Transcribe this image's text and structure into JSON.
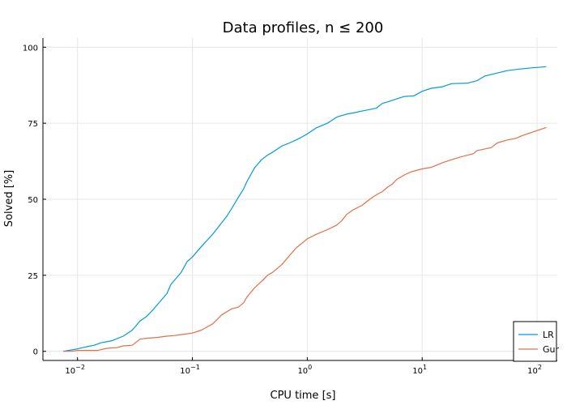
{
  "chart_data": {
    "type": "line",
    "title": "Data profiles, n ≤ 200",
    "xlabel": "CPU time [s]",
    "ylabel": "Solved [%]",
    "xscale": "log",
    "xlim": [
      0.005,
      150
    ],
    "ylim": [
      -3,
      103
    ],
    "grid": true,
    "legend_position": "bottom-right",
    "x_ticks": [
      {
        "value": 0.01,
        "base": "10",
        "exp": "−2"
      },
      {
        "value": 0.1,
        "base": "10",
        "exp": "−1"
      },
      {
        "value": 1,
        "base": "10",
        "exp": "0"
      },
      {
        "value": 10,
        "base": "10",
        "exp": "1"
      },
      {
        "value": 100,
        "base": "10",
        "exp": "2"
      }
    ],
    "y_ticks": [
      0,
      25,
      50,
      75,
      100
    ],
    "series": [
      {
        "name": "LR",
        "color": "#0099e0",
        "points": [
          [
            0.0075,
            0
          ],
          [
            0.009,
            0.5
          ],
          [
            0.01,
            0.8
          ],
          [
            0.012,
            1.5
          ],
          [
            0.014,
            2
          ],
          [
            0.016,
            2.8
          ],
          [
            0.02,
            3.5
          ],
          [
            0.025,
            5
          ],
          [
            0.03,
            7
          ],
          [
            0.035,
            10
          ],
          [
            0.04,
            11.5
          ],
          [
            0.045,
            13.5
          ],
          [
            0.05,
            15.5
          ],
          [
            0.06,
            19
          ],
          [
            0.065,
            22
          ],
          [
            0.08,
            26
          ],
          [
            0.09,
            29.5
          ],
          [
            0.1,
            31
          ],
          [
            0.12,
            34.5
          ],
          [
            0.15,
            38.5
          ],
          [
            0.2,
            44.5
          ],
          [
            0.22,
            47
          ],
          [
            0.25,
            50.5
          ],
          [
            0.28,
            53.5
          ],
          [
            0.3,
            56
          ],
          [
            0.35,
            60.5
          ],
          [
            0.4,
            63
          ],
          [
            0.45,
            64.5
          ],
          [
            0.5,
            65.5
          ],
          [
            0.55,
            66.5
          ],
          [
            0.6,
            67.5
          ],
          [
            0.7,
            68.5
          ],
          [
            0.8,
            69.5
          ],
          [
            0.9,
            70.5
          ],
          [
            1.0,
            71.5
          ],
          [
            1.2,
            73.5
          ],
          [
            1.5,
            75
          ],
          [
            1.8,
            77
          ],
          [
            2.2,
            78
          ],
          [
            2.6,
            78.5
          ],
          [
            3.0,
            79
          ],
          [
            3.5,
            79.5
          ],
          [
            4.0,
            80
          ],
          [
            4.5,
            81.5
          ],
          [
            5.0,
            82
          ],
          [
            6.0,
            83
          ],
          [
            7.0,
            83.8
          ],
          [
            8.5,
            84
          ],
          [
            10,
            85.5
          ],
          [
            12,
            86.5
          ],
          [
            15,
            87
          ],
          [
            18,
            88
          ],
          [
            25,
            88.2
          ],
          [
            30,
            89
          ],
          [
            35,
            90.5
          ],
          [
            45,
            91.5
          ],
          [
            55,
            92.3
          ],
          [
            70,
            92.8
          ],
          [
            90,
            93.2
          ],
          [
            120,
            93.6
          ]
        ]
      },
      {
        "name": "Gur",
        "color": "#e26f46",
        "points": [
          [
            0.0075,
            0
          ],
          [
            0.009,
            0
          ],
          [
            0.01,
            0.3
          ],
          [
            0.015,
            0.3
          ],
          [
            0.018,
            1
          ],
          [
            0.022,
            1.2
          ],
          [
            0.025,
            1.8
          ],
          [
            0.03,
            2
          ],
          [
            0.035,
            4
          ],
          [
            0.04,
            4.3
          ],
          [
            0.05,
            4.6
          ],
          [
            0.06,
            5
          ],
          [
            0.07,
            5.2
          ],
          [
            0.08,
            5.5
          ],
          [
            0.1,
            6
          ],
          [
            0.12,
            7
          ],
          [
            0.15,
            9
          ],
          [
            0.18,
            12
          ],
          [
            0.22,
            14
          ],
          [
            0.25,
            14.5
          ],
          [
            0.28,
            16
          ],
          [
            0.3,
            18
          ],
          [
            0.35,
            21
          ],
          [
            0.4,
            23
          ],
          [
            0.45,
            25
          ],
          [
            0.5,
            26
          ],
          [
            0.6,
            28.5
          ],
          [
            0.7,
            31.5
          ],
          [
            0.8,
            34
          ],
          [
            1.0,
            37
          ],
          [
            1.2,
            38.5
          ],
          [
            1.5,
            40
          ],
          [
            1.8,
            41.5
          ],
          [
            2.0,
            43
          ],
          [
            2.2,
            45
          ],
          [
            2.5,
            46.5
          ],
          [
            3.0,
            48
          ],
          [
            3.5,
            50
          ],
          [
            4.0,
            51.5
          ],
          [
            4.5,
            52.5
          ],
          [
            5.0,
            54
          ],
          [
            5.5,
            55
          ],
          [
            6.0,
            56.5
          ],
          [
            7.0,
            58
          ],
          [
            8.0,
            59
          ],
          [
            10,
            60
          ],
          [
            12,
            60.5
          ],
          [
            15,
            62
          ],
          [
            18,
            63
          ],
          [
            22,
            64
          ],
          [
            28,
            65
          ],
          [
            30,
            66
          ],
          [
            40,
            67
          ],
          [
            45,
            68.5
          ],
          [
            55,
            69.5
          ],
          [
            65,
            70
          ],
          [
            75,
            71
          ],
          [
            90,
            72
          ],
          [
            120,
            73.6
          ]
        ]
      }
    ]
  }
}
